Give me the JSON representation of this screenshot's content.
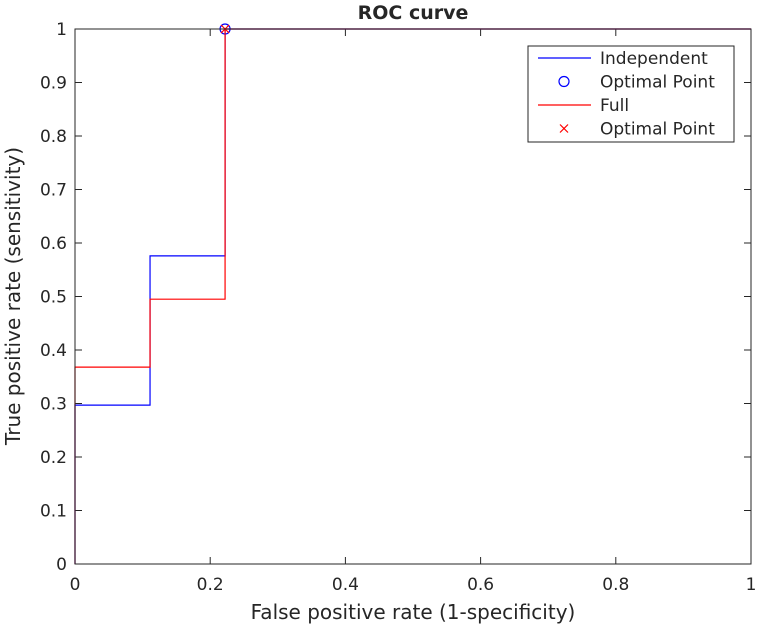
{
  "chart_data": {
    "type": "line",
    "title": "ROC curve",
    "xlabel": "False positive rate (1-specificity)",
    "ylabel": "True positive rate (sensitivity)",
    "xlim": [
      0,
      1
    ],
    "ylim": [
      0,
      1
    ],
    "xticks": [
      0,
      0.2,
      0.4,
      0.6,
      0.8,
      1
    ],
    "xtick_labels": [
      "0",
      "0.2",
      "0.4",
      "0.6",
      "0.8",
      "1"
    ],
    "yticks": [
      0,
      0.1,
      0.2,
      0.3,
      0.4,
      0.5,
      0.6,
      0.7,
      0.8,
      0.9,
      1
    ],
    "ytick_labels": [
      "0",
      "0.1",
      "0.2",
      "0.3",
      "0.4",
      "0.5",
      "0.6",
      "0.7",
      "0.8",
      "0.9",
      "1"
    ],
    "grid": false,
    "legend_position": "top-right",
    "series": [
      {
        "name": "Independent",
        "kind": "line",
        "color": "#0000ff",
        "x": [
          0,
          0,
          0.111,
          0.111,
          0.222,
          0.222,
          1
        ],
        "y": [
          0,
          0.297,
          0.297,
          0.576,
          0.576,
          1,
          1
        ]
      },
      {
        "name": "Optimal Point",
        "kind": "marker",
        "marker": "circle",
        "color": "#0000ff",
        "x": [
          0.222
        ],
        "y": [
          1
        ]
      },
      {
        "name": "Full",
        "kind": "line",
        "color": "#ff0000",
        "x": [
          0,
          0,
          0.111,
          0.111,
          0.222,
          0.222,
          1
        ],
        "y": [
          0,
          0.368,
          0.368,
          0.495,
          0.495,
          1,
          1
        ]
      },
      {
        "name": "Optimal Point",
        "kind": "marker",
        "marker": "x",
        "color": "#ff0000",
        "x": [
          0.222
        ],
        "y": [
          1
        ]
      }
    ]
  }
}
